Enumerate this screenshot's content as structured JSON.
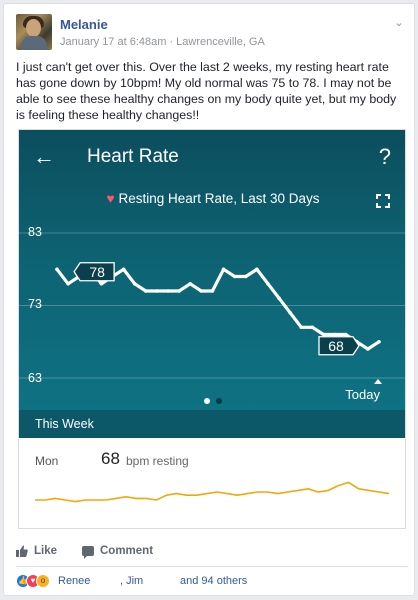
{
  "post": {
    "author": "Melanie",
    "meta": "January 17 at 6:48am · Lawrenceville, GA",
    "text": "I just can't get over this. Over the last 2 weeks, my resting heart rate has gone down by 10bpm! My old normal was 75 to 78. I may not be able to see these healthy changes on my body quite yet, but my body is feeling these healthy changes!!"
  },
  "app": {
    "title": "Heart Rate",
    "help": "?",
    "back": "←",
    "subtitle": "Resting Heart Rate, Last 30 Days",
    "heart_icon": "♥",
    "today": "Today",
    "week_title": "This Week",
    "day": "Mon",
    "bpm_value": "68",
    "bpm_unit": "bpm resting"
  },
  "chart_data": {
    "type": "line",
    "title": "Resting Heart Rate, Last 30 Days",
    "yticks": [
      63,
      73,
      83
    ],
    "ylim": [
      63,
      83
    ],
    "x": [
      1,
      2,
      3,
      4,
      5,
      6,
      7,
      8,
      9,
      10,
      11,
      12,
      13,
      14,
      15,
      16,
      17,
      18,
      19,
      20,
      21,
      22,
      23,
      24,
      25,
      26,
      27,
      28,
      29,
      30
    ],
    "values": [
      78,
      76,
      77,
      78,
      76,
      77,
      78,
      76,
      75,
      75,
      75,
      75,
      76,
      75,
      75,
      78,
      77,
      77,
      78,
      76,
      74,
      72,
      70,
      70,
      69,
      69,
      69,
      68,
      67,
      68
    ],
    "start_label": "78",
    "end_label": "68",
    "x_end_label": "Today",
    "grid": true
  },
  "week_spark": {
    "type": "line",
    "values": [
      5,
      5,
      6,
      5,
      4,
      5,
      5,
      5,
      6,
      7,
      6,
      6,
      5,
      8,
      9,
      8,
      8,
      9,
      10,
      9,
      8,
      9,
      10,
      10,
      9,
      10,
      11,
      12,
      10,
      11,
      14,
      16,
      12,
      11,
      10,
      9
    ],
    "color": "#f0a80a"
  },
  "actions": {
    "like": "Like",
    "comment": "Comment"
  },
  "reactions": {
    "name1": "Renee",
    "name2": ", Jim",
    "others": "and 94 others"
  }
}
